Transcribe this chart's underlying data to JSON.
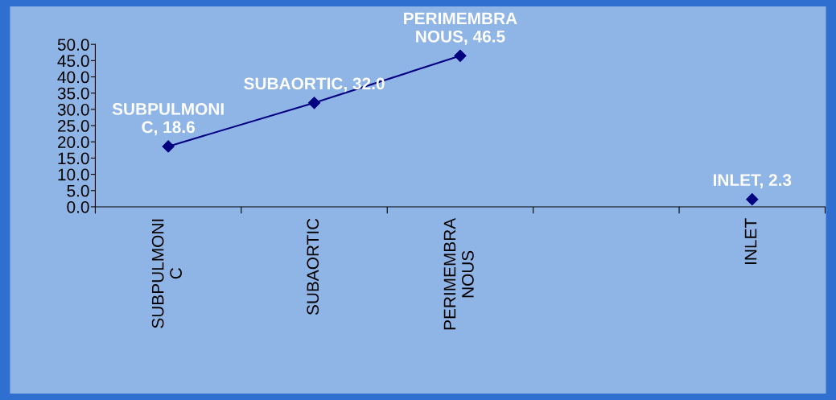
{
  "chart_data": {
    "type": "line",
    "categories": [
      "SUBPULMONIC",
      "SUBAORTIC",
      "PERIMEMBRANOUS",
      null,
      "INLET"
    ],
    "series": [
      {
        "color": "#000080",
        "values": [
          18.6,
          32.0,
          46.5,
          null,
          2.3
        ],
        "value_labels": [
          "SUBPULMONIC, 18.6",
          "SUBAORTIC, 32.0",
          "PERIMEMBRANOUS, 46.5",
          null,
          "INLET, 2.3"
        ]
      }
    ],
    "ylim": [
      0,
      50
    ],
    "yticks": [
      {
        "value": 0,
        "label": "0.0"
      },
      {
        "value": 5,
        "label": "5.0"
      },
      {
        "value": 10,
        "label": "10.0"
      },
      {
        "value": 15,
        "label": "15.0"
      },
      {
        "value": 20,
        "label": "20.0"
      },
      {
        "value": 25,
        "label": "25.0"
      },
      {
        "value": 30,
        "label": "30.0"
      },
      {
        "value": 35,
        "label": "35.0"
      },
      {
        "value": 40,
        "label": "40.0"
      },
      {
        "value": 45,
        "label": "45.0"
      },
      {
        "value": 50,
        "label": "50.0"
      }
    ],
    "marker": "diamond",
    "line_style": "solid",
    "grid": false,
    "legend": false
  }
}
